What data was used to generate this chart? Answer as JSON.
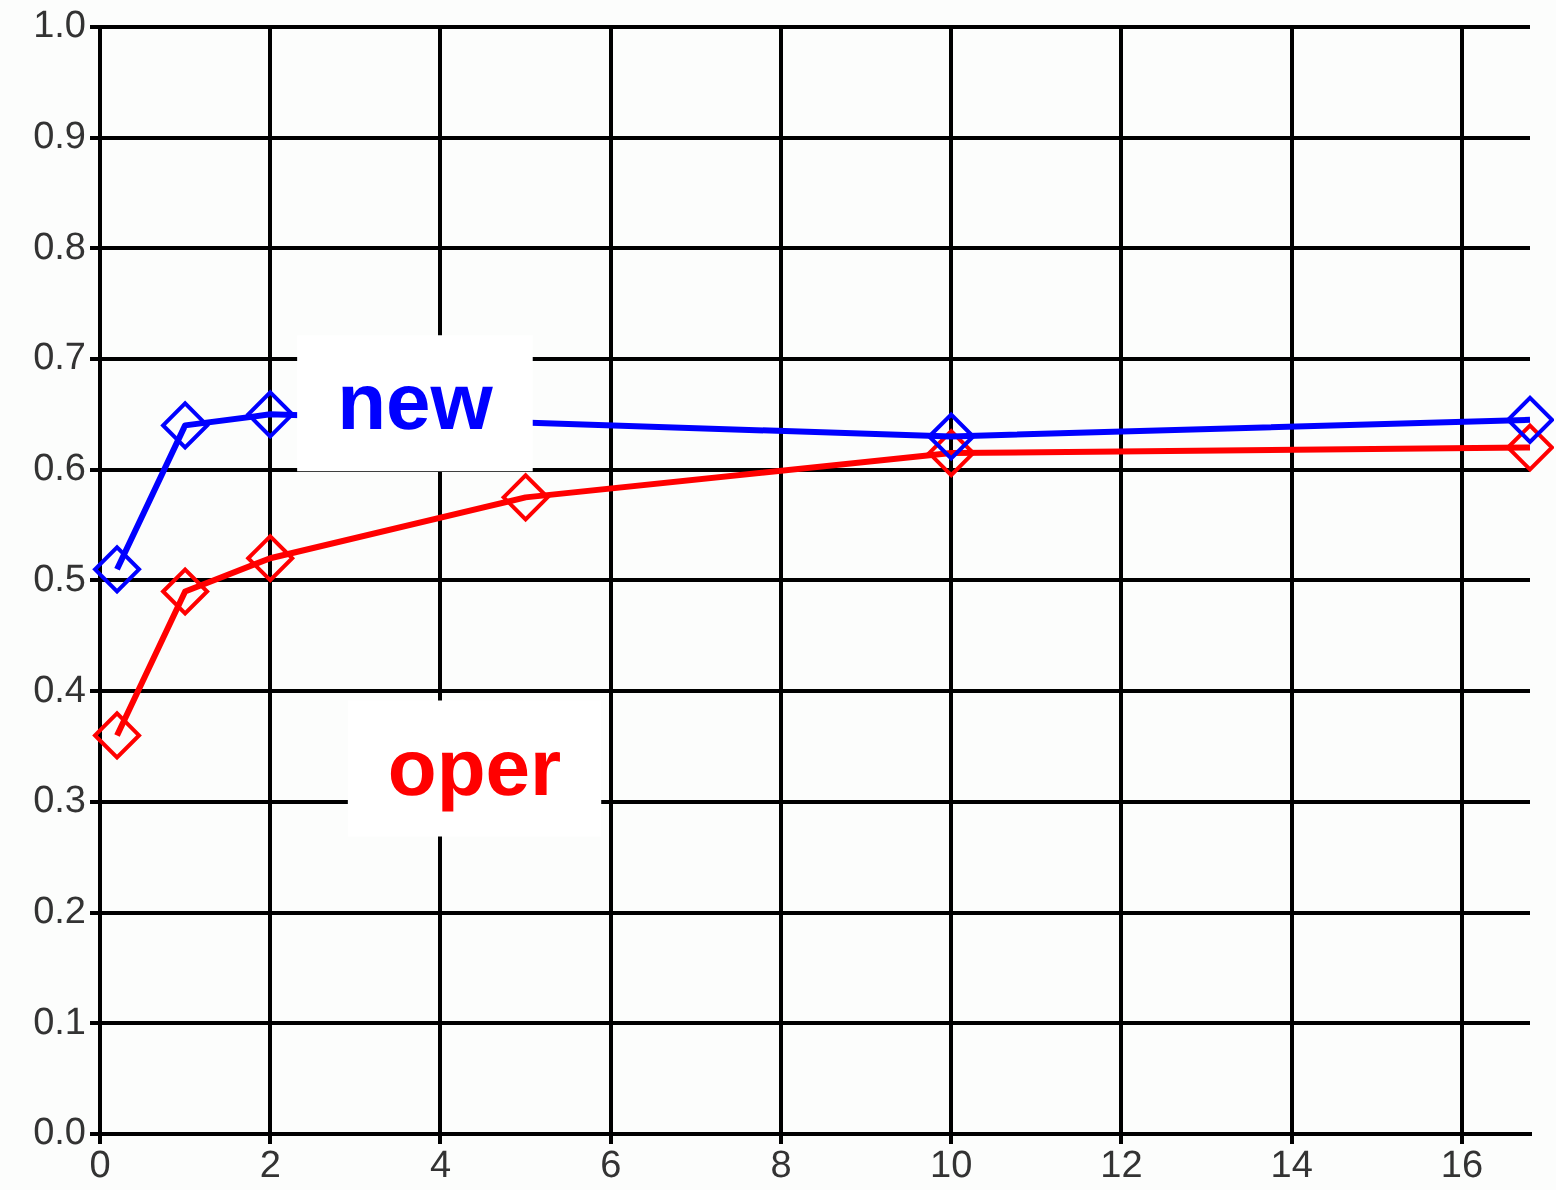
{
  "chart_data": {
    "type": "line",
    "xlim": [
      0,
      16.8
    ],
    "xticks": [
      0,
      2,
      4,
      6,
      8,
      10,
      12,
      14,
      16
    ],
    "ylim": [
      0,
      1
    ],
    "yticks": [
      {
        "value": 0,
        "label": "0.0"
      },
      0.1,
      0.2,
      0.3,
      0.4,
      0.5,
      0.6,
      0.7,
      0.8,
      0.9,
      {
        "value": 1,
        "label": "1.0"
      }
    ],
    "grid": true,
    "marker": "diamond",
    "line_style": "solid",
    "series": [
      {
        "name": "new",
        "color": "#0000ff",
        "x": [
          0.2,
          1,
          2,
          10,
          16.8
        ],
        "values": [
          0.51,
          0.64,
          0.65,
          0.63,
          0.645
        ]
      },
      {
        "name": "oper",
        "color": "#ff0000",
        "x": [
          0.2,
          1,
          2,
          5,
          10,
          16.8
        ],
        "values": [
          0.36,
          0.49,
          0.52,
          0.575,
          0.615,
          0.62
        ]
      }
    ]
  }
}
